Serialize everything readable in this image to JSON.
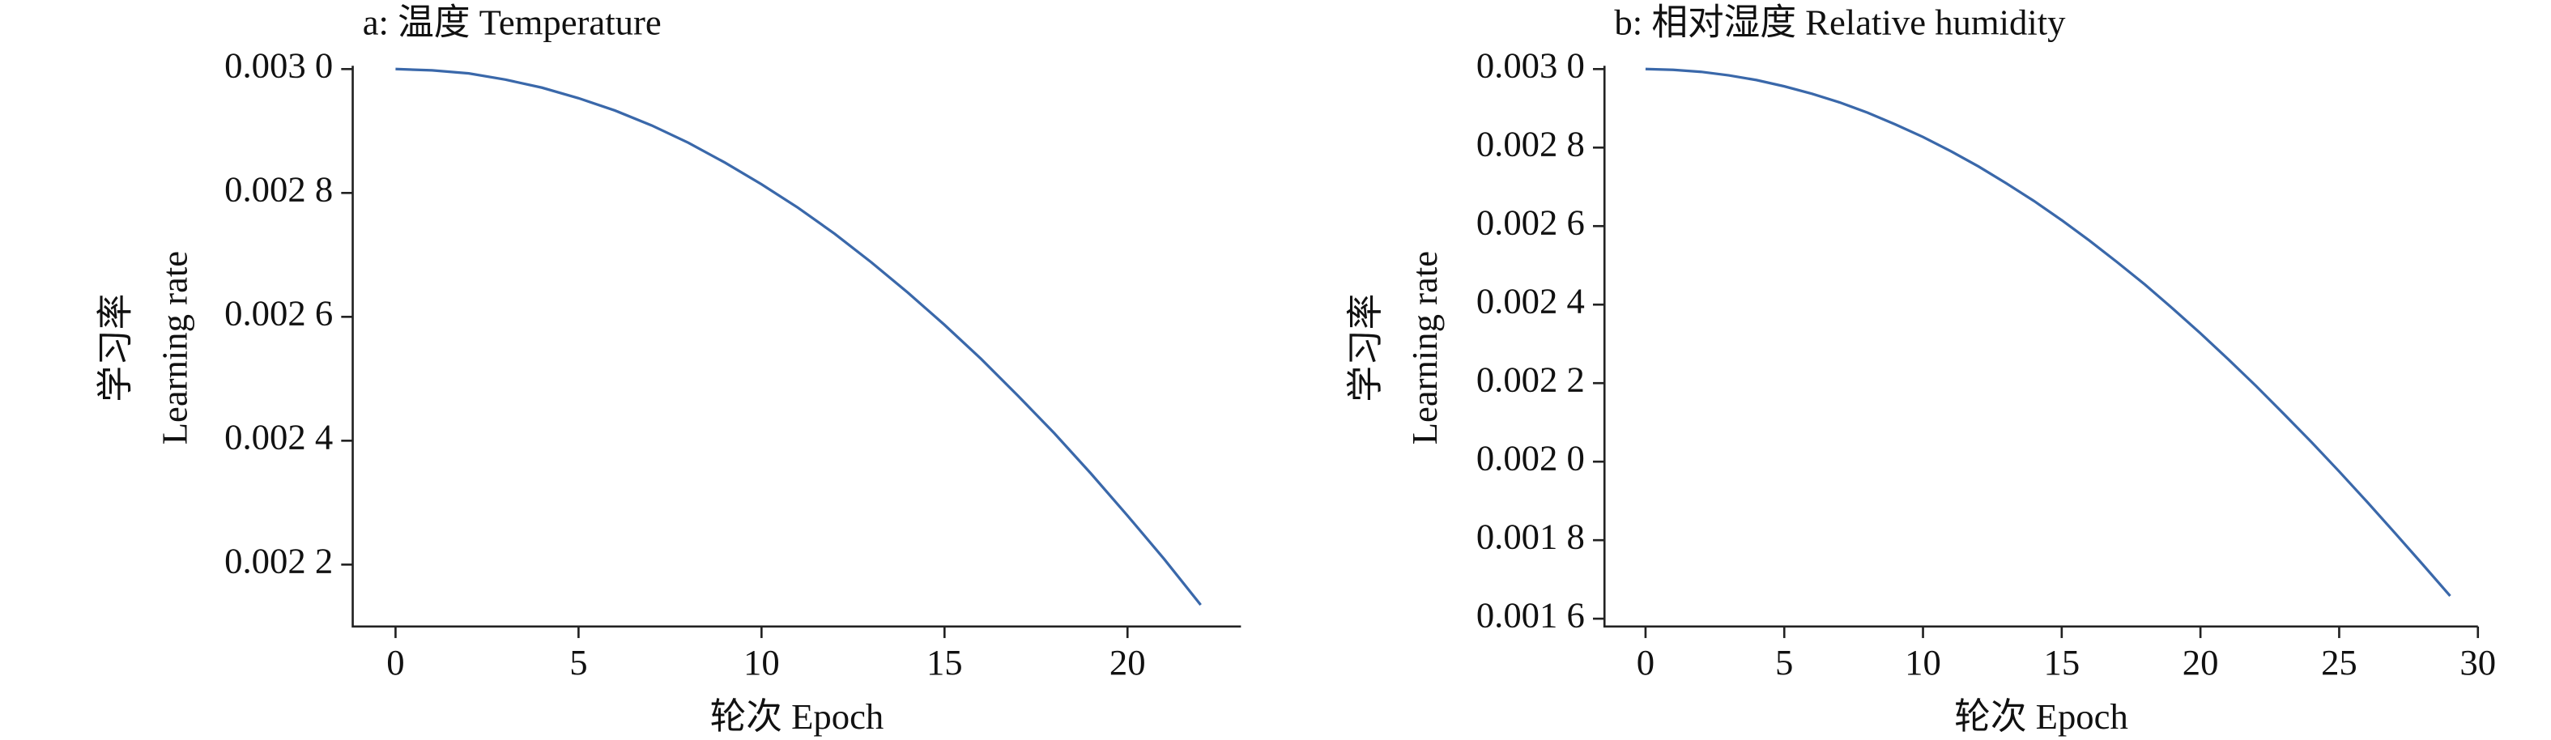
{
  "chart_data": [
    {
      "type": "line",
      "title": "a: 温度 Temperature",
      "y_label": [
        "学习率",
        "Learning rate"
      ],
      "x_label": "轮次 Epoch",
      "x": [
        0,
        1,
        2,
        3,
        4,
        5,
        6,
        7,
        8,
        9,
        10,
        11,
        12,
        13,
        14,
        15,
        16,
        17,
        18,
        19,
        20,
        21,
        22
      ],
      "series": [
        {
          "color": "#3a68aa",
          "values": [
            0.003,
            0.002998,
            0.002993,
            0.002983,
            0.00297,
            0.002953,
            0.002933,
            0.002909,
            0.002881,
            0.002849,
            0.002814,
            0.002776,
            0.002734,
            0.002688,
            0.002639,
            0.002587,
            0.002532,
            0.002473,
            0.002412,
            0.002347,
            0.002279,
            0.002209,
            0.002135
          ]
        }
      ],
      "xlim": [
        -1.17,
        23.1
      ],
      "ylim": [
        0.0021,
        0.003
      ],
      "xticks": [
        0,
        5,
        10,
        15,
        20
      ],
      "yticks": [
        {
          "value": 0.0022,
          "label": "0.002 2"
        },
        {
          "value": 0.0024,
          "label": "0.002 4"
        },
        {
          "value": 0.0026,
          "label": "0.002 6"
        },
        {
          "value": 0.0028,
          "label": "0.002 8"
        },
        {
          "value": 0.003,
          "label": "0.003 0"
        }
      ]
    },
    {
      "type": "line",
      "title": "b: 相对湿度 Relative humidity",
      "y_label": [
        "学习率",
        "Learning rate"
      ],
      "x_label": "轮次 Epoch",
      "x": [
        0,
        1,
        2,
        3,
        4,
        5,
        6,
        7,
        8,
        9,
        10,
        11,
        12,
        13,
        14,
        15,
        16,
        17,
        18,
        19,
        20,
        21,
        22,
        23,
        24,
        25,
        26,
        27,
        28,
        29
      ],
      "series": [
        {
          "color": "#3a68aa",
          "values": [
            0.003,
            0.002998,
            0.002993,
            0.002984,
            0.002972,
            0.002956,
            0.002937,
            0.002915,
            0.002889,
            0.002859,
            0.002827,
            0.002791,
            0.002752,
            0.002709,
            0.002664,
            0.002615,
            0.002563,
            0.002508,
            0.002451,
            0.00239,
            0.002327,
            0.002261,
            0.002193,
            0.002122,
            0.00205,
            0.001975,
            0.001898,
            0.001819,
            0.001739,
            0.001658
          ]
        }
      ],
      "xlim": [
        -1.48,
        30
      ],
      "ylim": [
        0.00158,
        0.003
      ],
      "xticks": [
        0,
        5,
        10,
        15,
        20,
        25,
        30
      ],
      "yticks": [
        {
          "value": 0.0016,
          "label": "0.001 6"
        },
        {
          "value": 0.0018,
          "label": "0.001 8"
        },
        {
          "value": 0.002,
          "label": "0.002 0"
        },
        {
          "value": 0.0022,
          "label": "0.002 2"
        },
        {
          "value": 0.0024,
          "label": "0.002 4"
        },
        {
          "value": 0.0026,
          "label": "0.002 6"
        },
        {
          "value": 0.0028,
          "label": "0.002 8"
        },
        {
          "value": 0.003,
          "label": "0.003 0"
        }
      ]
    }
  ]
}
